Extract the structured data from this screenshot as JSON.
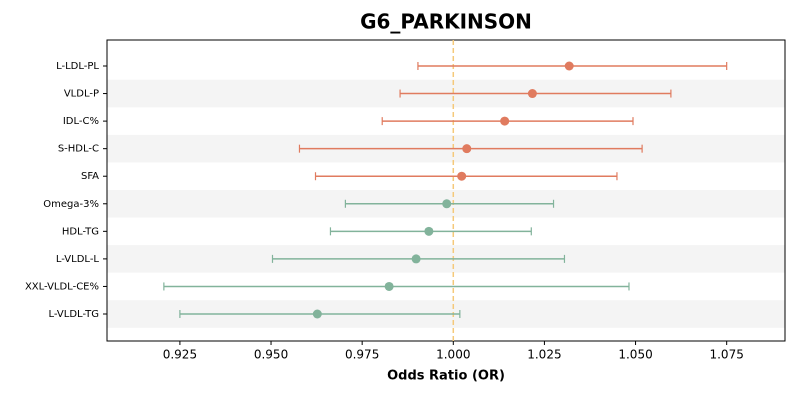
{
  "chart_data": {
    "type": "forest",
    "title": "G6_PARKINSON",
    "x_label": "Odds Ratio (OR)",
    "categories": [
      "L-LDL-PL",
      "VLDL-P",
      "IDL-C%",
      "S-HDL-C",
      "SFA",
      "Omega-3%",
      "HDL-TG",
      "L-VLDL-L",
      "XXL-VLDL-CE%",
      "L-VLDL-TG"
    ],
    "values": [
      1.0318,
      1.0217,
      1.0141,
      1.0037,
      1.0023,
      0.9982,
      0.9933,
      0.9898,
      0.9824,
      0.9627
    ],
    "lower": [
      0.9903,
      0.9854,
      0.9805,
      0.9578,
      0.9622,
      0.9704,
      0.9663,
      0.9504,
      0.9206,
      0.925
    ],
    "upper": [
      1.075,
      1.0597,
      1.0493,
      1.0518,
      1.0449,
      1.0275,
      1.0214,
      1.0305,
      1.0482,
      1.0018
    ],
    "colors": [
      "#e07b5f",
      "#e07b5f",
      "#e07b5f",
      "#e07b5f",
      "#e07b5f",
      "#82b39b",
      "#82b39b",
      "#82b39b",
      "#82b39b",
      "#82b39b"
    ],
    "reference": 1,
    "reference_color": "#f5c97a",
    "xlim": [
      0.905,
      1.091
    ],
    "xticks": [
      0.925,
      {
        "value": 0.95,
        "label": "0.950"
      },
      0.975,
      {
        "value": 1,
        "label": "1.000"
      },
      1.025,
      {
        "value": 1.05,
        "label": "1.050"
      },
      1.075
    ],
    "row_shading": true
  }
}
